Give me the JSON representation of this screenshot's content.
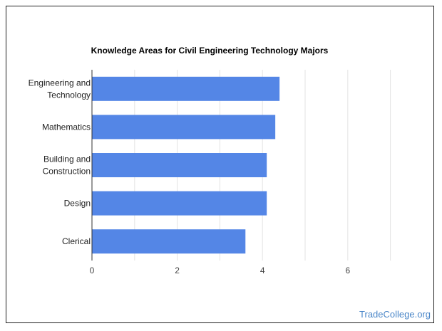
{
  "chart_data": {
    "type": "bar",
    "orientation": "horizontal",
    "title": "Knowledge Areas for Civil Engineering Technology Majors",
    "categories": [
      [
        "Engineering and",
        "Technology"
      ],
      [
        "Mathematics"
      ],
      [
        "Building and",
        "Construction"
      ],
      [
        "Design"
      ],
      [
        "Clerical"
      ]
    ],
    "values": [
      4.4,
      4.3,
      4.1,
      4.1,
      3.6
    ],
    "xlim": [
      0,
      7
    ],
    "xticks": [
      0,
      2,
      4,
      6
    ],
    "grid": true,
    "bar_color": "#5486e6"
  },
  "credit": "TradeCollege.org"
}
